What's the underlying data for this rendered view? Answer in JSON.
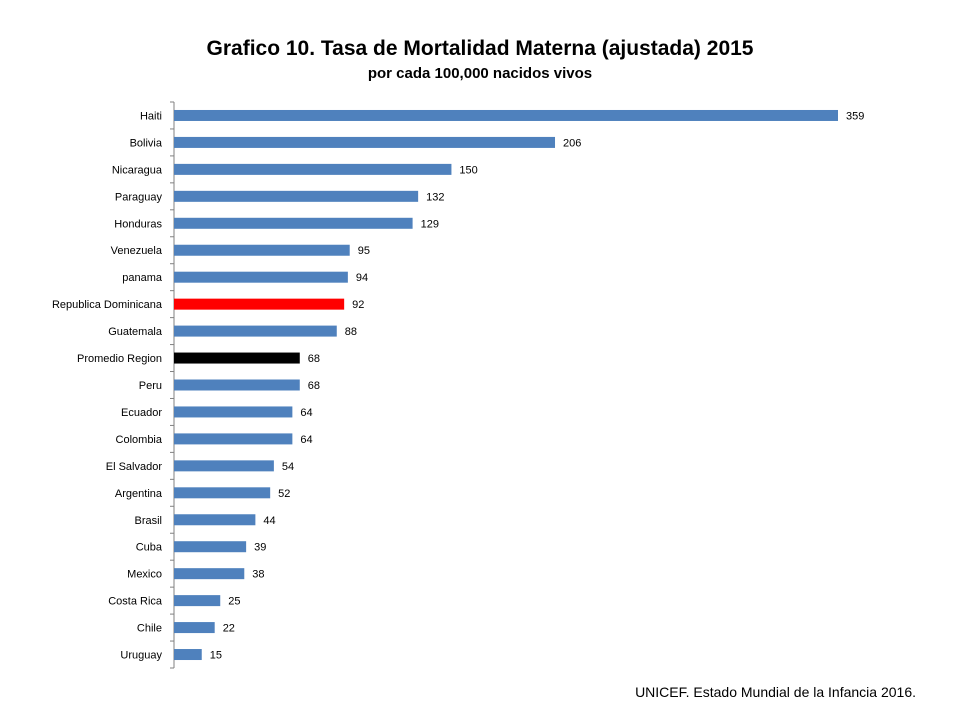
{
  "chart_data": {
    "type": "bar",
    "orientation": "horizontal",
    "title": "Grafico 10. Tasa de Mortalidad Materna (ajustada) 2015",
    "subtitle": "por cada 100,000 nacidos vivos",
    "categories": [
      "Haiti",
      "Bolivia",
      "Nicaragua",
      "Paraguay",
      "Honduras",
      "Venezuela",
      "panama",
      "Republica Dominicana",
      "Guatemala",
      "Promedio Region",
      "Peru",
      "Ecuador",
      "Colombia",
      "El Salvador",
      "Argentina",
      "Brasil",
      "Cuba",
      "Mexico",
      "Costa Rica",
      "Chile",
      "Uruguay"
    ],
    "values": [
      359,
      206,
      150,
      132,
      129,
      95,
      94,
      92,
      88,
      68,
      68,
      64,
      64,
      54,
      52,
      44,
      39,
      38,
      25,
      22,
      15
    ],
    "colors": [
      "#4f81bd",
      "#4f81bd",
      "#4f81bd",
      "#4f81bd",
      "#4f81bd",
      "#4f81bd",
      "#4f81bd",
      "#ff0000",
      "#4f81bd",
      "#000000",
      "#4f81bd",
      "#4f81bd",
      "#4f81bd",
      "#4f81bd",
      "#4f81bd",
      "#4f81bd",
      "#4f81bd",
      "#4f81bd",
      "#4f81bd",
      "#4f81bd",
      "#4f81bd"
    ],
    "data_labels": true,
    "grid": false,
    "legend": "none",
    "xlim": [
      0,
      359
    ]
  },
  "source": "UNICEF. Estado Mundial de la Infancia 2016."
}
